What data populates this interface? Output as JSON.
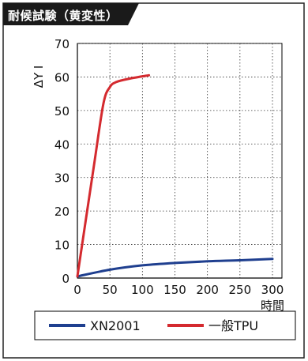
{
  "header": {
    "title": "耐候試験（黄変性）"
  },
  "chart_data": {
    "type": "line",
    "title": "",
    "xlabel": "時間",
    "ylabel": "ΔY I",
    "xlim": [
      0,
      300
    ],
    "ylim": [
      0,
      70
    ],
    "x_ticks": [
      0,
      50,
      100,
      150,
      200,
      250,
      300
    ],
    "y_ticks": [
      0,
      10,
      20,
      30,
      40,
      50,
      60,
      70
    ],
    "grid": true,
    "legend_position": "bottom",
    "series": [
      {
        "name": "XN2001",
        "color": "#1f3f8f",
        "x": [
          0,
          50,
          100,
          150,
          200,
          250,
          300
        ],
        "y": [
          0.5,
          2.5,
          3.8,
          4.5,
          5.0,
          5.3,
          5.7
        ]
      },
      {
        "name": "一般TPU",
        "color": "#d42a2f",
        "x": [
          0,
          25,
          40,
          50,
          60,
          80,
          110
        ],
        "y": [
          0.5,
          33,
          52,
          57,
          58.5,
          59.5,
          60.5
        ]
      }
    ]
  }
}
